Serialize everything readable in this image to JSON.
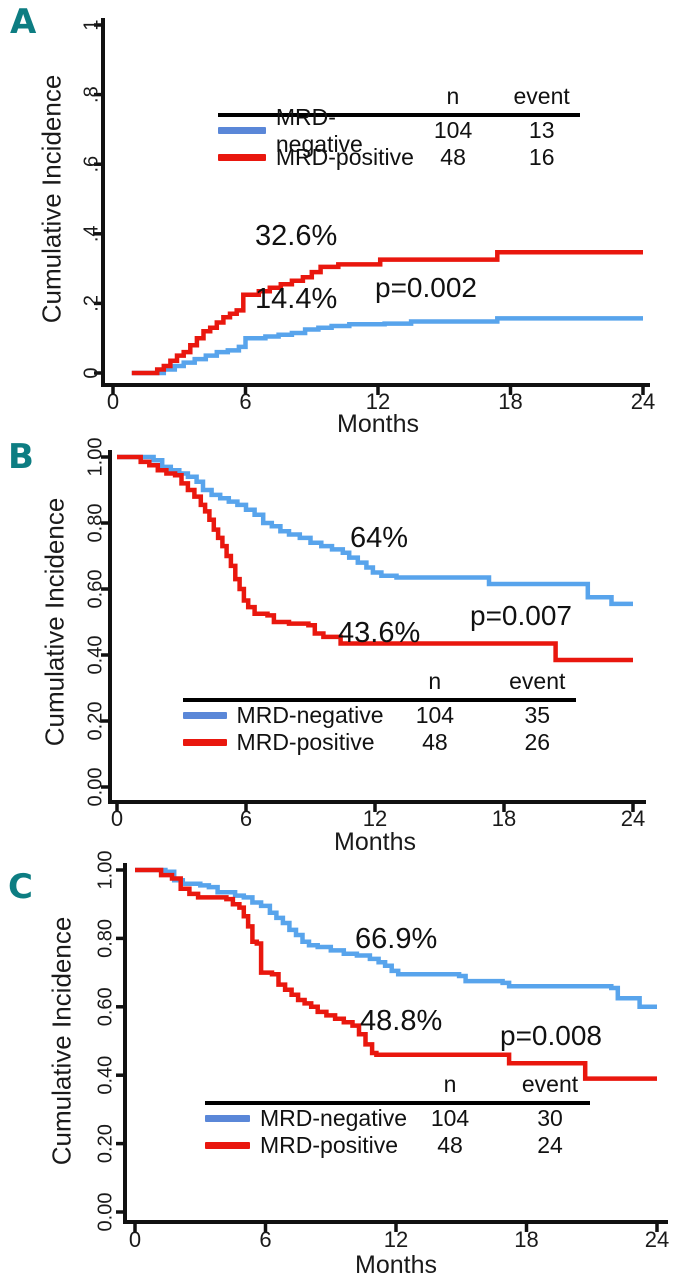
{
  "figure": {
    "type": "cumulative-incidence-curves",
    "panels_order": [
      "A",
      "B",
      "C"
    ]
  },
  "panels": [
    {
      "letter": "A",
      "legend_headers": {
        "n": "n",
        "event": "event"
      }
    },
    {
      "letter": "B",
      "legend_headers": {
        "n": "n",
        "event": "event"
      }
    },
    {
      "letter": "C",
      "legend_headers": {
        "n": "n",
        "event": "event"
      }
    }
  ],
  "colors": {
    "panel_letter": "#0d7d82",
    "blue_curve": "#58a4ec",
    "blue_swatch": "#5a87d8",
    "red_curve": "#e9170e",
    "axis": "#111111"
  },
  "chart_data": [
    {
      "panel": "A",
      "type": "line",
      "step": true,
      "xlabel": "Months",
      "ylabel": "Cumulative Incidence",
      "xlim": [
        0,
        24
      ],
      "ylim": [
        0,
        1
      ],
      "x_ticks": [
        0,
        6,
        12,
        18,
        24
      ],
      "x_tick_labels": [
        "0",
        "6",
        "12",
        "18",
        "24"
      ],
      "y_ticks": [
        0,
        0.2,
        0.4,
        0.6,
        0.8,
        1
      ],
      "y_tick_labels": [
        "0",
        ".2",
        ".4",
        ".6",
        ".8",
        "1"
      ],
      "p_value": "p=0.002",
      "legend_position": "upper-middle",
      "series": [
        {
          "name": "MRD-negative",
          "n": 104,
          "events": 13,
          "final_label": "14.4%",
          "color": "#58a4ec",
          "swatch_color": "#5a87d8",
          "points": [
            [
              0.85,
              0
            ],
            [
              2.3,
              0.01
            ],
            [
              2.8,
              0.02
            ],
            [
              3.2,
              0.03
            ],
            [
              3.7,
              0.04
            ],
            [
              4.2,
              0.05
            ],
            [
              4.7,
              0.06
            ],
            [
              5.2,
              0.065
            ],
            [
              5.7,
              0.075
            ],
            [
              6.0,
              0.1
            ],
            [
              6.9,
              0.105
            ],
            [
              7.5,
              0.11
            ],
            [
              8.1,
              0.115
            ],
            [
              8.7,
              0.125
            ],
            [
              9.3,
              0.13
            ],
            [
              9.9,
              0.135
            ],
            [
              10.7,
              0.14
            ],
            [
              12.3,
              0.142
            ],
            [
              13.5,
              0.148
            ],
            [
              17.4,
              0.157
            ],
            [
              24,
              0.157
            ]
          ]
        },
        {
          "name": "MRD-positive",
          "n": 48,
          "events": 16,
          "final_label": "32.6%",
          "color": "#e9170e",
          "swatch_color": "#e9170e",
          "points": [
            [
              0.85,
              0
            ],
            [
              2.0,
              0.01
            ],
            [
              2.3,
              0.02
            ],
            [
              2.6,
              0.035
            ],
            [
              2.9,
              0.05
            ],
            [
              3.2,
              0.06
            ],
            [
              3.5,
              0.08
            ],
            [
              3.8,
              0.1
            ],
            [
              4.1,
              0.12
            ],
            [
              4.4,
              0.13
            ],
            [
              4.7,
              0.145
            ],
            [
              5.0,
              0.16
            ],
            [
              5.3,
              0.17
            ],
            [
              5.6,
              0.18
            ],
            [
              5.9,
              0.225
            ],
            [
              6.6,
              0.235
            ],
            [
              7.1,
              0.245
            ],
            [
              7.6,
              0.255
            ],
            [
              8.1,
              0.265
            ],
            [
              8.6,
              0.275
            ],
            [
              9.0,
              0.29
            ],
            [
              9.4,
              0.305
            ],
            [
              10.2,
              0.312
            ],
            [
              12.1,
              0.326
            ],
            [
              17.4,
              0.347
            ],
            [
              24,
              0.347
            ]
          ]
        }
      ]
    },
    {
      "panel": "B",
      "type": "line",
      "step": true,
      "xlabel": "Months",
      "ylabel": "Cumulative Incidence",
      "xlim": [
        0,
        24
      ],
      "ylim": [
        0,
        1
      ],
      "x_ticks": [
        0,
        6,
        12,
        18,
        24
      ],
      "x_tick_labels": [
        "0",
        "6",
        "12",
        "18",
        "24"
      ],
      "y_ticks": [
        0,
        0.2,
        0.4,
        0.6,
        0.8,
        1
      ],
      "y_tick_labels": [
        "0.00",
        "0.20",
        "0.40",
        "0.60",
        "0.80",
        "1.00"
      ],
      "p_value": "p=0.007",
      "legend_position": "lower-middle",
      "series": [
        {
          "name": "MRD-negative",
          "n": 104,
          "events": 35,
          "final_label": "64%",
          "color": "#58a4ec",
          "swatch_color": "#5a87d8",
          "points": [
            [
              0,
              1.0
            ],
            [
              1.7,
              0.99
            ],
            [
              2.1,
              0.97
            ],
            [
              2.5,
              0.96
            ],
            [
              2.9,
              0.95
            ],
            [
              3.3,
              0.94
            ],
            [
              3.7,
              0.925
            ],
            [
              4.0,
              0.9
            ],
            [
              4.4,
              0.885
            ],
            [
              4.8,
              0.875
            ],
            [
              5.2,
              0.865
            ],
            [
              5.6,
              0.855
            ],
            [
              6.0,
              0.84
            ],
            [
              6.4,
              0.825
            ],
            [
              6.8,
              0.8
            ],
            [
              7.2,
              0.79
            ],
            [
              7.6,
              0.775
            ],
            [
              8.0,
              0.765
            ],
            [
              8.5,
              0.755
            ],
            [
              9.0,
              0.74
            ],
            [
              9.5,
              0.73
            ],
            [
              10.0,
              0.72
            ],
            [
              10.5,
              0.71
            ],
            [
              10.8,
              0.695
            ],
            [
              11.2,
              0.68
            ],
            [
              11.6,
              0.665
            ],
            [
              11.9,
              0.65
            ],
            [
              12.3,
              0.64
            ],
            [
              13.0,
              0.635
            ],
            [
              17.3,
              0.615
            ],
            [
              21.9,
              0.575
            ],
            [
              23.0,
              0.555
            ],
            [
              24,
              0.555
            ]
          ]
        },
        {
          "name": "MRD-positive",
          "n": 48,
          "events": 26,
          "final_label": "43.6%",
          "color": "#e9170e",
          "swatch_color": "#e9170e",
          "points": [
            [
              0,
              1.0
            ],
            [
              1.1,
              0.985
            ],
            [
              1.5,
              0.975
            ],
            [
              1.9,
              0.96
            ],
            [
              2.3,
              0.95
            ],
            [
              2.7,
              0.945
            ],
            [
              3.0,
              0.92
            ],
            [
              3.3,
              0.9
            ],
            [
              3.6,
              0.88
            ],
            [
              3.9,
              0.855
            ],
            [
              4.1,
              0.835
            ],
            [
              4.3,
              0.81
            ],
            [
              4.5,
              0.78
            ],
            [
              4.7,
              0.755
            ],
            [
              4.9,
              0.73
            ],
            [
              5.1,
              0.7
            ],
            [
              5.3,
              0.67
            ],
            [
              5.5,
              0.63
            ],
            [
              5.7,
              0.6
            ],
            [
              5.9,
              0.565
            ],
            [
              6.1,
              0.545
            ],
            [
              6.4,
              0.525
            ],
            [
              7.0,
              0.52
            ],
            [
              7.3,
              0.5
            ],
            [
              8.0,
              0.495
            ],
            [
              8.9,
              0.49
            ],
            [
              9.2,
              0.465
            ],
            [
              9.6,
              0.455
            ],
            [
              10.4,
              0.435
            ],
            [
              20.1,
              0.435
            ],
            [
              20.4,
              0.385
            ],
            [
              24,
              0.385
            ]
          ]
        }
      ]
    },
    {
      "panel": "C",
      "type": "line",
      "step": true,
      "xlabel": "Months",
      "ylabel": "Cumulative Incidence",
      "xlim": [
        0,
        24
      ],
      "ylim": [
        0,
        1
      ],
      "x_ticks": [
        0,
        6,
        12,
        18,
        24
      ],
      "x_tick_labels": [
        "0",
        "6",
        "12",
        "18",
        "24"
      ],
      "y_ticks": [
        0,
        0.2,
        0.4,
        0.6,
        0.8,
        1
      ],
      "y_tick_labels": [
        "0.00",
        "0.20",
        "0.40",
        "0.60",
        "0.80",
        "1.00"
      ],
      "p_value": "p=0.008",
      "legend_position": "lower-middle",
      "series": [
        {
          "name": "MRD-negative",
          "n": 104,
          "events": 30,
          "final_label": "66.9%",
          "color": "#58a4ec",
          "swatch_color": "#5a87d8",
          "points": [
            [
              0,
              1.0
            ],
            [
              1.4,
              0.995
            ],
            [
              1.8,
              0.97
            ],
            [
              2.2,
              0.96
            ],
            [
              3.0,
              0.955
            ],
            [
              3.4,
              0.95
            ],
            [
              3.8,
              0.935
            ],
            [
              4.6,
              0.925
            ],
            [
              5.0,
              0.92
            ],
            [
              5.4,
              0.905
            ],
            [
              5.8,
              0.895
            ],
            [
              6.2,
              0.875
            ],
            [
              6.5,
              0.86
            ],
            [
              6.8,
              0.845
            ],
            [
              7.1,
              0.825
            ],
            [
              7.4,
              0.81
            ],
            [
              7.7,
              0.79
            ],
            [
              8.0,
              0.78
            ],
            [
              8.4,
              0.775
            ],
            [
              9.0,
              0.765
            ],
            [
              9.6,
              0.755
            ],
            [
              10.2,
              0.75
            ],
            [
              10.8,
              0.74
            ],
            [
              11.2,
              0.73
            ],
            [
              11.5,
              0.72
            ],
            [
              11.8,
              0.705
            ],
            [
              12.1,
              0.695
            ],
            [
              14.9,
              0.69
            ],
            [
              15.2,
              0.675
            ],
            [
              16.9,
              0.67
            ],
            [
              17.2,
              0.66
            ],
            [
              21.9,
              0.655
            ],
            [
              22.2,
              0.625
            ],
            [
              23.2,
              0.6
            ],
            [
              24,
              0.6
            ]
          ]
        },
        {
          "name": "MRD-positive",
          "n": 48,
          "events": 24,
          "final_label": "48.8%",
          "color": "#e9170e",
          "swatch_color": "#e9170e",
          "points": [
            [
              0,
              1.0
            ],
            [
              1.2,
              0.985
            ],
            [
              1.7,
              0.975
            ],
            [
              2.1,
              0.945
            ],
            [
              2.5,
              0.93
            ],
            [
              2.9,
              0.92
            ],
            [
              4.2,
              0.915
            ],
            [
              4.5,
              0.9
            ],
            [
              4.8,
              0.89
            ],
            [
              5.0,
              0.865
            ],
            [
              5.2,
              0.835
            ],
            [
              5.4,
              0.79
            ],
            [
              5.6,
              0.785
            ],
            [
              5.8,
              0.7
            ],
            [
              6.3,
              0.695
            ],
            [
              6.6,
              0.665
            ],
            [
              6.9,
              0.65
            ],
            [
              7.2,
              0.635
            ],
            [
              7.5,
              0.62
            ],
            [
              7.8,
              0.61
            ],
            [
              8.1,
              0.6
            ],
            [
              8.4,
              0.585
            ],
            [
              8.8,
              0.575
            ],
            [
              9.2,
              0.565
            ],
            [
              9.6,
              0.555
            ],
            [
              10.0,
              0.545
            ],
            [
              10.3,
              0.52
            ],
            [
              10.6,
              0.49
            ],
            [
              10.9,
              0.465
            ],
            [
              11.1,
              0.46
            ],
            [
              16.9,
              0.46
            ],
            [
              17.2,
              0.435
            ],
            [
              20.4,
              0.435
            ],
            [
              20.7,
              0.39
            ],
            [
              24,
              0.39
            ]
          ]
        }
      ]
    }
  ]
}
